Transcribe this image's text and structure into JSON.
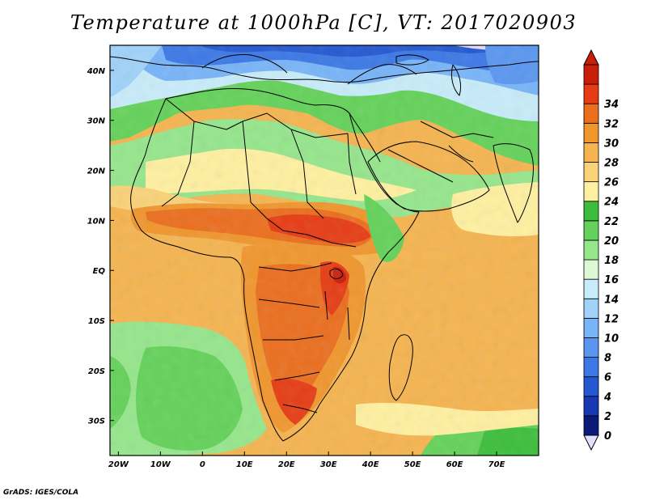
{
  "title": "Temperature at 1000hPa [C], VT: 2017020903",
  "credit": "GrADS: IGES/COLA",
  "map": {
    "lon_range": [
      -22,
      80
    ],
    "lat_range": [
      -37,
      45
    ],
    "lon_ticks": [
      {
        "value": -20,
        "label": "20W"
      },
      {
        "value": -10,
        "label": "10W"
      },
      {
        "value": 0,
        "label": "0"
      },
      {
        "value": 10,
        "label": "10E"
      },
      {
        "value": 20,
        "label": "20E"
      },
      {
        "value": 30,
        "label": "30E"
      },
      {
        "value": 40,
        "label": "40E"
      },
      {
        "value": 50,
        "label": "50E"
      },
      {
        "value": 60,
        "label": "60E"
      },
      {
        "value": 70,
        "label": "70E"
      }
    ],
    "lat_ticks": [
      {
        "value": 40,
        "label": "40N"
      },
      {
        "value": 30,
        "label": "30N"
      },
      {
        "value": 20,
        "label": "20N"
      },
      {
        "value": 10,
        "label": "10N"
      },
      {
        "value": 0,
        "label": "EQ"
      },
      {
        "value": -10,
        "label": "10S"
      },
      {
        "value": -20,
        "label": "20S"
      },
      {
        "value": -30,
        "label": "30S"
      }
    ]
  },
  "colorbar": {
    "levels": [
      "0",
      "2",
      "4",
      "6",
      "8",
      "10",
      "12",
      "14",
      "16",
      "18",
      "20",
      "22",
      "24",
      "26",
      "28",
      "30",
      "32",
      "34"
    ],
    "colors": [
      "#0a1a78",
      "#1838b4",
      "#2458d2",
      "#3c78e6",
      "#5a96f0",
      "#78b4f8",
      "#a0d2fa",
      "#c8ecfa",
      "#dcf8d4",
      "#96e68c",
      "#64d25a",
      "#3cbe3c",
      "#fff0a0",
      "#fad278",
      "#f5b450",
      "#f0962d",
      "#eb6e1e",
      "#e63c14",
      "#c81e0a"
    ],
    "under_color": "#e0e0ff",
    "over_color": "#c81e0a"
  },
  "colors": {
    "coastline": "#000000",
    "frame": "#000000"
  }
}
